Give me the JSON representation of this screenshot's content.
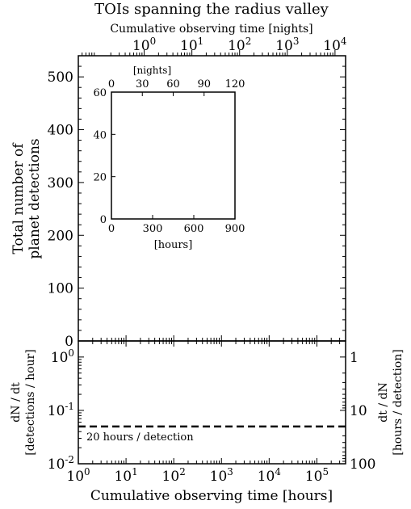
{
  "chart_data": [
    {
      "type": "line",
      "panel": "top",
      "title": "TOIs spanning the radius valley",
      "xlabel_top": "Cumulative observing time [nights]",
      "ylabel_lines": [
        "Total number of",
        "planet detections"
      ],
      "xscale": "log",
      "xlim": [
        1,
        400000
      ],
      "ylim": [
        0,
        540
      ],
      "yticks": [
        0,
        100,
        200,
        300,
        400,
        500
      ],
      "top_xticks_nights": [
        1,
        10,
        100,
        1000,
        10000
      ],
      "top_xtick_labels": [
        "10^0",
        "10^1",
        "10^2",
        "10^3",
        "10^4"
      ],
      "series": []
    },
    {
      "type": "line",
      "panel": "inset",
      "xlabel": "[hours]",
      "xlabel_top": "[nights]",
      "xlim": [
        0,
        900
      ],
      "ylim": [
        0,
        60
      ],
      "xticks": [
        0,
        300,
        600,
        900
      ],
      "yticks": [
        0,
        20,
        40,
        60
      ],
      "top_xticks": [
        0,
        30,
        60,
        90,
        120
      ],
      "series": []
    },
    {
      "type": "line",
      "panel": "bottom",
      "xlabel": "Cumulative observing time [hours]",
      "ylabel_lines": [
        "dN / dt",
        "[detections / hour]"
      ],
      "ylabel_right_lines": [
        "dt / dN",
        "[hours / detection]"
      ],
      "xscale": "log",
      "yscale": "log",
      "xlim": [
        1,
        400000
      ],
      "ylim": [
        0.01,
        2
      ],
      "xticks": [
        1,
        10,
        100,
        1000,
        10000,
        100000
      ],
      "xtick_labels": [
        "10^0",
        "10^1",
        "10^2",
        "10^3",
        "10^4",
        "10^5"
      ],
      "yticks": [
        0.01,
        0.1,
        1
      ],
      "ytick_labels": [
        "10^-2",
        "10^-1",
        "10^0"
      ],
      "right_yticks": [
        1,
        10,
        100
      ],
      "right_ytick_labels": [
        "1",
        "10",
        "100"
      ],
      "reference_line": {
        "y": 0.05,
        "style": "dashed",
        "label": "20 hours / detection"
      },
      "series": []
    }
  ]
}
